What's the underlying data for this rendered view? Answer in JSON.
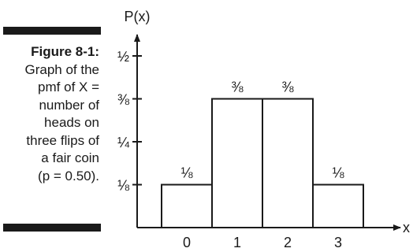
{
  "caption": {
    "label": "Figure 8-1:",
    "lines": [
      "Graph of the",
      "pmf of X =",
      "number of",
      "heads on",
      "three flips of",
      "a fair coin",
      "(p = 0.50)."
    ]
  },
  "chart_data": {
    "type": "bar",
    "categories": [
      "0",
      "1",
      "2",
      "3"
    ],
    "values": [
      0.125,
      0.375,
      0.375,
      0.125
    ],
    "value_labels": [
      "⅛",
      "⅜",
      "⅜",
      "⅛"
    ],
    "xlabel": "x",
    "ylabel": "P(x)",
    "yticks": [
      {
        "value": 0.125,
        "label": "⅛"
      },
      {
        "value": 0.25,
        "label": "¼"
      },
      {
        "value": 0.375,
        "label": "⅜"
      },
      {
        "value": 0.5,
        "label": "½"
      }
    ],
    "ylim": [
      0,
      0.5
    ],
    "grid": false
  }
}
